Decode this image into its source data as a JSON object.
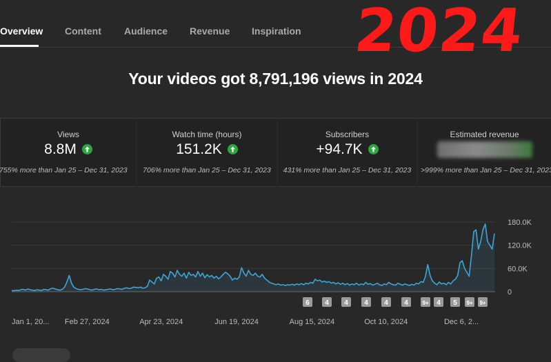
{
  "tabs": [
    {
      "label": "Overview",
      "active": true
    },
    {
      "label": "Content",
      "active": false
    },
    {
      "label": "Audience",
      "active": false
    },
    {
      "label": "Revenue",
      "active": false
    },
    {
      "label": "Inspiration",
      "active": false
    }
  ],
  "overlay_year": "2024",
  "headline": "Your videos got 8,791,196 views in 2024",
  "cards": [
    {
      "label": "Views",
      "value": "8.8M",
      "trend": "up",
      "comparison": "755% more than Jan 25 – Dec 31, 2023"
    },
    {
      "label": "Watch time (hours)",
      "value": "151.2K",
      "trend": "up",
      "comparison": "706% more than Jan 25 – Dec 31, 2023"
    },
    {
      "label": "Subscribers",
      "value": "+94.7K",
      "trend": "up",
      "comparison": "431% more than Jan 25 – Dec 31, 2023"
    },
    {
      "label": "Estimated revenue",
      "value": "",
      "trend": "up",
      "comparison": ">999% more than Jan 25 – Dec 31, 2023"
    }
  ],
  "colors": {
    "accent_line": "#3ea6d6",
    "up_green": "#2ba640",
    "overlay_red": "#ff1a1a"
  },
  "chart_data": {
    "type": "area",
    "x_start": "2024-01-01",
    "x_end": "2024-12-31",
    "x_tick_labels": [
      "Jan 1, 20...",
      "Feb 27, 2024",
      "Apr 23, 2024",
      "Jun 19, 2024",
      "Aug 15, 2024",
      "Oct 10, 2024",
      "Dec 6, 2..."
    ],
    "x_tick_dates": [
      "2024-01-01",
      "2024-02-27",
      "2024-04-23",
      "2024-06-19",
      "2024-08-15",
      "2024-10-10",
      "2024-12-06"
    ],
    "y_tick_labels": [
      "180.0K",
      "120.0K",
      "60.0K",
      "0"
    ],
    "y_tick_values": [
      180000,
      120000,
      60000,
      0
    ],
    "ylim": [
      0,
      180000
    ],
    "grid": true,
    "series": [
      {
        "values": [
          3000,
          2500,
          4000,
          3000,
          5000,
          6000,
          4000,
          7000,
          5000,
          4000,
          3000,
          5000,
          4000,
          3000,
          6000,
          5000,
          4000,
          8000,
          9000,
          7000,
          5000,
          4000,
          6000,
          12000,
          25000,
          42000,
          22000,
          12000,
          8000,
          6000,
          5000,
          6000,
          8000,
          7000,
          5000,
          4000,
          6000,
          7000,
          5000,
          6000,
          4000,
          5000,
          6000,
          7000,
          5000,
          6000,
          8000,
          7000,
          6000,
          9000,
          10000,
          8000,
          9000,
          12000,
          11000,
          10000,
          12000,
          9000,
          10000,
          14000,
          30000,
          25000,
          20000,
          35000,
          38000,
          28000,
          45000,
          40000,
          32000,
          52000,
          48000,
          38000,
          55000,
          45000,
          40000,
          48000,
          35000,
          50000,
          42000,
          45000,
          38000,
          52000,
          40000,
          48000,
          36000,
          44000,
          38000,
          42000,
          35000,
          40000,
          33000,
          38000,
          45000,
          50000,
          46000,
          40000,
          30000,
          35000,
          32000,
          38000,
          62000,
          48000,
          40000,
          55000,
          45000,
          42000,
          48000,
          40000,
          38000,
          45000,
          35000,
          30000,
          25000,
          22000,
          20000,
          18000,
          20000,
          17000,
          18000,
          16000,
          18000,
          17000,
          19000,
          17000,
          20000,
          18000,
          21000,
          18000,
          22000,
          20000,
          24000,
          22000,
          32000,
          28000,
          30000,
          25000,
          27000,
          24000,
          26000,
          22000,
          24000,
          20000,
          23000,
          19000,
          22000,
          18000,
          21000,
          17000,
          20000,
          18000,
          22000,
          17000,
          20000,
          18000,
          24000,
          19000,
          21000,
          17000,
          19000,
          22000,
          18000,
          16000,
          20000,
          18000,
          24000,
          20000,
          18000,
          17000,
          22000,
          19000,
          17000,
          20000,
          18000,
          16000,
          19000,
          17000,
          22000,
          20000,
          26000,
          24000,
          40000,
          70000,
          42000,
          28000,
          22000,
          18000,
          25000,
          20000,
          22000,
          18000,
          24000,
          20000,
          28000,
          32000,
          42000,
          75000,
          80000,
          60000,
          50000,
          40000,
          95000,
          155000,
          160000,
          110000,
          130000,
          160000,
          175000,
          130000,
          120000,
          110000,
          150000
        ]
      }
    ]
  },
  "day_badges": [
    "6",
    "4",
    "4",
    "4",
    "4",
    "4",
    "9+",
    "4",
    "5",
    "9+",
    "9+"
  ]
}
